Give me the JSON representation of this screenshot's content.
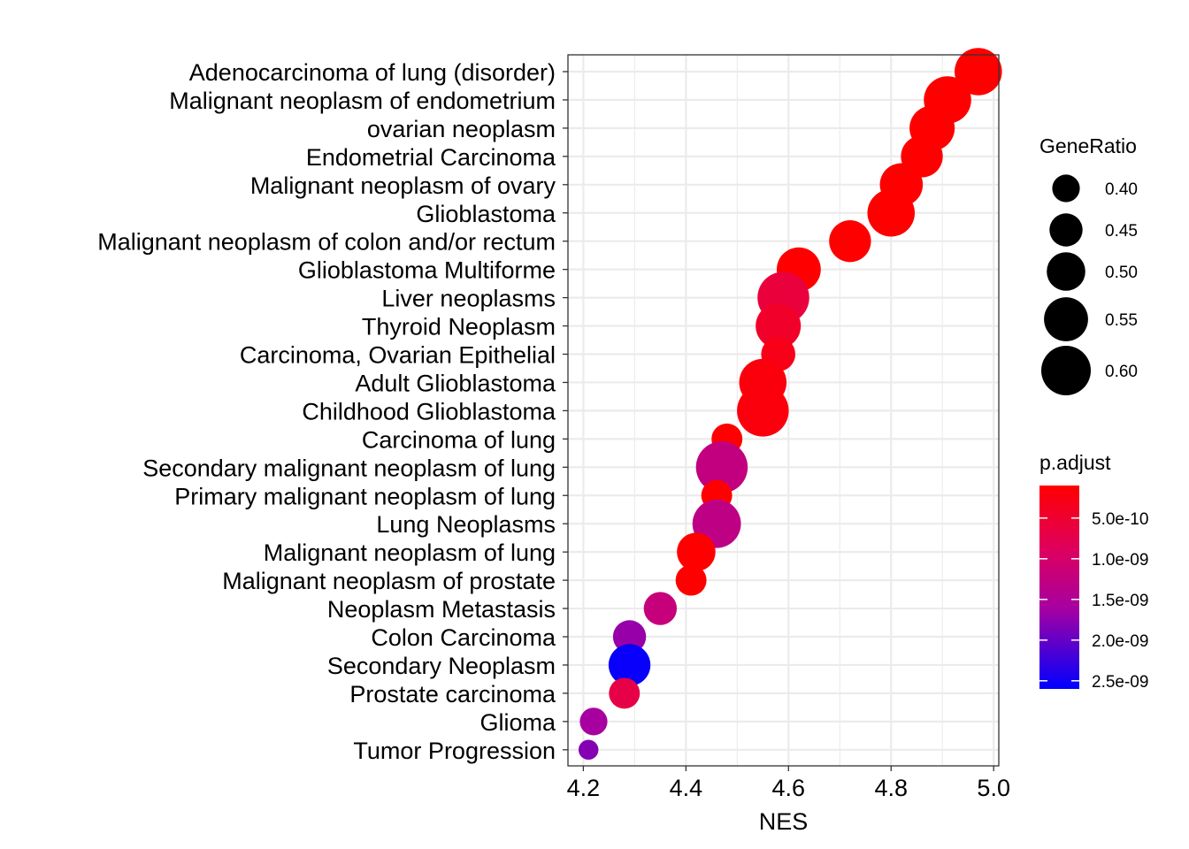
{
  "chart_data": {
    "type": "scatter",
    "title": "",
    "xlabel": "NES",
    "ylabel": "",
    "xlim": [
      4.17,
      5.01
    ],
    "xticks": [
      "4.2",
      "4.4",
      "4.6",
      "4.8",
      "5.0"
    ],
    "grid": true,
    "points": [
      {
        "label": "Adenocarcinoma of lung (disorder)",
        "x": 4.97,
        "gene_ratio": 0.58,
        "p_adjust": 1e-10
      },
      {
        "label": "Malignant neoplasm of endometrium",
        "x": 4.91,
        "gene_ratio": 0.58,
        "p_adjust": 1e-10
      },
      {
        "label": "ovarian neoplasm",
        "x": 4.88,
        "gene_ratio": 0.56,
        "p_adjust": 1e-10
      },
      {
        "label": "Endometrial Carcinoma",
        "x": 4.86,
        "gene_ratio": 0.53,
        "p_adjust": 1e-10
      },
      {
        "label": "Malignant neoplasm of ovary",
        "x": 4.82,
        "gene_ratio": 0.54,
        "p_adjust": 1e-10
      },
      {
        "label": "Glioblastoma",
        "x": 4.8,
        "gene_ratio": 0.58,
        "p_adjust": 1e-10
      },
      {
        "label": "Malignant neoplasm of colon and/or rectum",
        "x": 4.72,
        "gene_ratio": 0.53,
        "p_adjust": 1e-10
      },
      {
        "label": "Glioblastoma Multiforme",
        "x": 4.62,
        "gene_ratio": 0.55,
        "p_adjust": 1e-10
      },
      {
        "label": "Liver neoplasms",
        "x": 4.59,
        "gene_ratio": 0.62,
        "p_adjust": 6e-10
      },
      {
        "label": "Thyroid Neoplasm",
        "x": 4.58,
        "gene_ratio": 0.56,
        "p_adjust": 4.5e-10
      },
      {
        "label": "Carcinoma, Ovarian Epithelial",
        "x": 4.58,
        "gene_ratio": 0.46,
        "p_adjust": 3e-10
      },
      {
        "label": "Adult Glioblastoma",
        "x": 4.55,
        "gene_ratio": 0.58,
        "p_adjust": 2e-10
      },
      {
        "label": "Childhood Glioblastoma",
        "x": 4.55,
        "gene_ratio": 0.62,
        "p_adjust": 2e-10
      },
      {
        "label": "Carcinoma of lung",
        "x": 4.48,
        "gene_ratio": 0.43,
        "p_adjust": 1e-10
      },
      {
        "label": "Secondary malignant neoplasm of lung",
        "x": 4.47,
        "gene_ratio": 0.62,
        "p_adjust": 1.25e-09
      },
      {
        "label": "Primary malignant neoplasm of lung",
        "x": 4.46,
        "gene_ratio": 0.43,
        "p_adjust": 1e-10
      },
      {
        "label": "Lung Neoplasms",
        "x": 4.46,
        "gene_ratio": 0.59,
        "p_adjust": 1.3e-09
      },
      {
        "label": "Malignant neoplasm of lung",
        "x": 4.42,
        "gene_ratio": 0.5,
        "p_adjust": 1e-10
      },
      {
        "label": "Malignant neoplasm of prostate",
        "x": 4.41,
        "gene_ratio": 0.43,
        "p_adjust": 1e-10
      },
      {
        "label": "Neoplasm Metastasis",
        "x": 4.35,
        "gene_ratio": 0.45,
        "p_adjust": 1.2e-09
      },
      {
        "label": "Colon Carcinoma",
        "x": 4.29,
        "gene_ratio": 0.45,
        "p_adjust": 1.7e-09
      },
      {
        "label": "Secondary Neoplasm",
        "x": 4.29,
        "gene_ratio": 0.53,
        "p_adjust": 2.55e-09
      },
      {
        "label": "Prostate carcinoma",
        "x": 4.28,
        "gene_ratio": 0.43,
        "p_adjust": 7e-10
      },
      {
        "label": "Glioma",
        "x": 4.22,
        "gene_ratio": 0.4,
        "p_adjust": 1.6e-09
      },
      {
        "label": "Tumor Progression",
        "x": 4.21,
        "gene_ratio": 0.33,
        "p_adjust": 1.8e-09
      }
    ],
    "legend_size": {
      "title": "GeneRatio",
      "values": [
        0.4,
        0.45,
        0.5,
        0.55,
        0.6
      ],
      "labels": [
        "0.40",
        "0.45",
        "0.50",
        "0.55",
        "0.60"
      ]
    },
    "legend_color": {
      "title": "p.adjust",
      "range": [
        1e-10,
        2.6e-09
      ],
      "ticks": [
        5e-10,
        1e-09,
        1.5e-09,
        2e-09,
        2.5e-09
      ],
      "labels": [
        "5.0e-10",
        "1.0e-09",
        "1.5e-09",
        "2.0e-09",
        "2.5e-09"
      ],
      "low_color": "#FF0000",
      "high_color": "#0000FF"
    },
    "legend_placement": "right"
  }
}
